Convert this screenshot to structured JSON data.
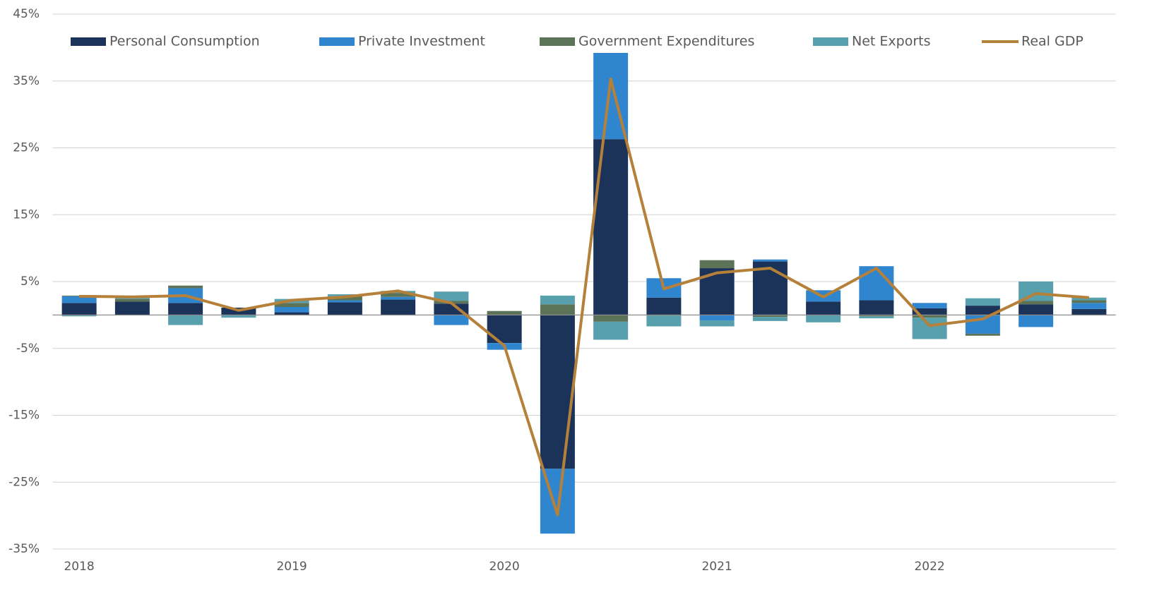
{
  "chart_data": {
    "type": "bar",
    "categories": [
      "2018",
      null,
      null,
      null,
      "2019",
      null,
      null,
      null,
      "2020",
      null,
      null,
      null,
      "2021",
      null,
      null,
      null,
      "2022",
      null,
      null,
      null
    ],
    "series": [
      {
        "name": "Personal Consumption",
        "color": "#1b3259",
        "values": [
          1.8,
          2.0,
          1.8,
          1.1,
          0.4,
          1.9,
          2.3,
          1.7,
          -4.2,
          -23.0,
          26.3,
          2.6,
          7.0,
          8.0,
          2.0,
          2.2,
          1.0,
          1.4,
          1.6,
          0.9
        ]
      },
      {
        "name": "Private Investment",
        "color": "#3085cf",
        "values": [
          1.0,
          0.0,
          2.2,
          0.0,
          0.8,
          0.3,
          0.4,
          -1.5,
          -1.0,
          -9.7,
          12.9,
          2.9,
          -0.8,
          0.3,
          1.7,
          5.1,
          0.8,
          -2.8,
          -1.8,
          0.9
        ]
      },
      {
        "name": "Government Expenditures",
        "color": "#5d7358",
        "values": [
          0.1,
          0.4,
          0.4,
          0.0,
          0.6,
          0.6,
          0.6,
          0.4,
          0.6,
          1.6,
          -1.0,
          -0.1,
          1.2,
          -0.3,
          0.0,
          -0.2,
          -0.4,
          -0.3,
          0.5,
          0.4
        ]
      },
      {
        "name": "Net Exports",
        "color": "#58a0ad",
        "values": [
          -0.2,
          0.4,
          -1.5,
          -0.4,
          0.6,
          0.3,
          0.3,
          1.4,
          0.0,
          1.3,
          -2.7,
          -1.6,
          -0.9,
          -0.6,
          -1.1,
          -0.3,
          -3.2,
          1.1,
          2.9,
          0.4
        ]
      },
      {
        "name": "Real GDP",
        "color": "#b5803a",
        "type": "line",
        "values": [
          2.8,
          2.7,
          2.9,
          0.7,
          2.2,
          2.7,
          3.6,
          1.8,
          -4.6,
          -29.9,
          35.3,
          3.9,
          6.3,
          7.0,
          2.7,
          7.0,
          -1.6,
          -0.6,
          3.2,
          2.6
        ]
      }
    ],
    "ylim": [
      -35,
      45
    ],
    "yticks": [
      {
        "value": -35,
        "label": "-35%"
      },
      {
        "value": -25,
        "label": "-25%"
      },
      {
        "value": -15,
        "label": "-15%"
      },
      {
        "value": -5,
        "label": "-5%"
      },
      {
        "value": 5,
        "label": "5%"
      },
      {
        "value": 15,
        "label": "15%"
      },
      {
        "value": 25,
        "label": "25%"
      },
      {
        "value": 35,
        "label": "35%"
      },
      {
        "value": 45,
        "label": "45%"
      }
    ],
    "grid": true,
    "legend": "top"
  }
}
